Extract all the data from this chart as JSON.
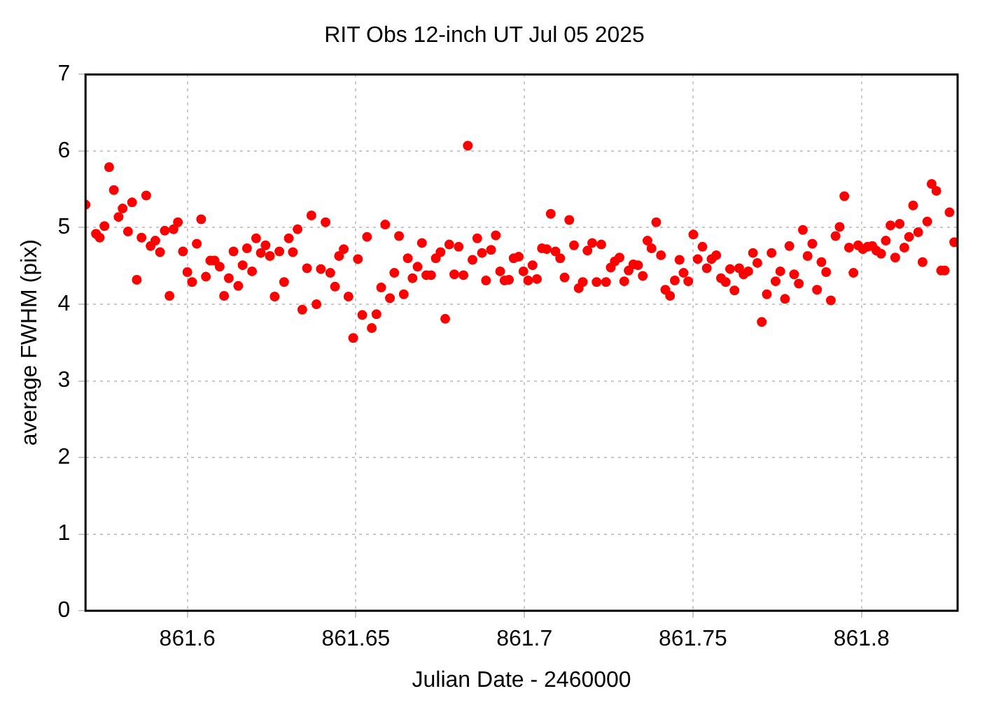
{
  "chart_data": {
    "type": "scatter",
    "title": "RIT Obs 12-inch UT Jul 05 2025",
    "xlabel": "Julian Date - 2460000",
    "ylabel": "average FWHM (pix)",
    "xlim": [
      861.5698,
      861.8285
    ],
    "xticks": [
      861.6,
      861.65,
      861.7,
      861.75,
      861.8
    ],
    "ylim": [
      0,
      7
    ],
    "yticks": [
      0,
      1,
      2,
      3,
      4,
      5,
      6,
      7
    ],
    "grid": true,
    "marker": "circle",
    "legend": false,
    "series": [
      {
        "color": "#ff0000",
        "x": [
          861.5698,
          861.5729,
          861.574,
          861.5754,
          861.5768,
          861.5782,
          861.5796,
          861.5808,
          861.5824,
          861.5836,
          861.585,
          861.5864,
          861.5878,
          861.5891,
          861.5905,
          861.5919,
          861.5933,
          861.5947,
          861.5959,
          861.5972,
          861.5987,
          861.6,
          861.6014,
          861.6028,
          861.6041,
          861.6055,
          861.6068,
          861.6081,
          861.6096,
          861.6109,
          861.6123,
          861.6137,
          861.6151,
          861.6164,
          861.6177,
          861.6192,
          861.6204,
          861.6218,
          861.6232,
          861.6245,
          861.6259,
          861.6273,
          861.6287,
          861.6301,
          861.6313,
          861.6327,
          861.6341,
          861.6355,
          861.6368,
          861.6383,
          861.6396,
          861.641,
          861.6424,
          861.6438,
          861.645,
          861.6464,
          861.6478,
          861.6492,
          861.6506,
          861.6519,
          861.6533,
          861.6547,
          861.6561,
          861.6575,
          861.6587,
          861.6601,
          861.6614,
          861.6628,
          861.6642,
          861.6654,
          861.6668,
          861.6683,
          861.6696,
          861.6709,
          861.6723,
          861.6737,
          861.6751,
          861.6765,
          861.6777,
          861.6792,
          861.6805,
          861.6819,
          861.6832,
          861.6846,
          861.686,
          861.6874,
          861.6886,
          861.6901,
          861.6915,
          861.6928,
          861.6941,
          861.6954,
          861.6968,
          861.6983,
          861.6997,
          861.7011,
          861.7024,
          861.7037,
          861.7052,
          861.7066,
          861.7078,
          861.7092,
          861.7106,
          861.7119,
          861.7133,
          861.7147,
          861.7161,
          861.7173,
          861.7187,
          861.7201,
          861.7214,
          861.7228,
          861.7242,
          861.7256,
          861.7268,
          861.7282,
          861.7296,
          861.7309,
          861.7323,
          861.7337,
          861.7351,
          861.7365,
          861.7377,
          861.7391,
          861.7405,
          861.7418,
          861.7432,
          861.7446,
          861.746,
          861.7472,
          861.7486,
          861.7501,
          861.7514,
          861.7528,
          861.7541,
          861.7555,
          861.7569,
          861.7583,
          861.7597,
          861.761,
          861.7623,
          861.7637,
          861.765,
          861.7664,
          861.7678,
          861.7691,
          861.7704,
          861.7719,
          861.7733,
          861.7745,
          861.7759,
          861.7773,
          861.7786,
          861.78,
          861.7814,
          861.7826,
          861.784,
          861.7854,
          861.7868,
          861.7881,
          861.7895,
          861.7909,
          861.7923,
          861.7935,
          861.7949,
          861.7963,
          861.7976,
          861.799,
          861.8004,
          861.8018,
          861.8032,
          861.8044,
          861.8058,
          861.8072,
          861.8086,
          861.81,
          861.8113,
          861.8127,
          861.8141,
          861.8153,
          861.8168,
          861.8181,
          861.8195,
          861.8208,
          861.8222,
          861.8236,
          861.8247,
          861.8261,
          861.8275
        ],
        "values": [
          5.3,
          4.92,
          4.87,
          5.02,
          5.79,
          5.49,
          5.14,
          5.25,
          4.95,
          5.33,
          4.32,
          4.87,
          5.42,
          4.76,
          4.83,
          4.68,
          4.96,
          4.11,
          4.98,
          5.07,
          4.69,
          4.42,
          4.29,
          4.79,
          5.11,
          4.36,
          4.57,
          4.57,
          4.49,
          4.11,
          4.34,
          4.69,
          4.24,
          4.51,
          4.73,
          4.43,
          4.86,
          4.67,
          4.77,
          4.63,
          4.1,
          4.69,
          4.29,
          4.86,
          4.68,
          4.98,
          3.93,
          4.47,
          5.16,
          4.0,
          4.46,
          5.07,
          4.41,
          4.23,
          4.63,
          4.72,
          4.1,
          3.56,
          4.59,
          3.86,
          4.88,
          3.69,
          3.87,
          4.22,
          5.04,
          4.08,
          4.41,
          4.89,
          4.13,
          4.6,
          4.34,
          4.49,
          4.8,
          4.38,
          4.38,
          4.6,
          4.68,
          3.81,
          4.78,
          4.39,
          4.75,
          4.38,
          6.07,
          4.58,
          4.86,
          4.67,
          4.31,
          4.71,
          4.9,
          4.43,
          4.31,
          4.32,
          4.6,
          4.62,
          4.43,
          4.31,
          4.51,
          4.33,
          4.73,
          4.72,
          5.18,
          4.69,
          4.6,
          4.35,
          5.1,
          4.77,
          4.21,
          4.29,
          4.7,
          4.8,
          4.29,
          4.78,
          4.29,
          4.48,
          4.56,
          4.61,
          4.3,
          4.44,
          4.52,
          4.51,
          4.37,
          4.83,
          4.73,
          5.07,
          4.64,
          4.19,
          4.11,
          4.31,
          4.58,
          4.41,
          4.3,
          4.91,
          4.59,
          4.75,
          4.47,
          4.59,
          4.64,
          4.34,
          4.29,
          4.46,
          4.18,
          4.47,
          4.39,
          4.43,
          4.67,
          4.54,
          3.77,
          4.13,
          4.67,
          4.3,
          4.43,
          4.07,
          4.76,
          4.39,
          4.27,
          4.97,
          4.63,
          4.79,
          4.19,
          4.55,
          4.42,
          4.05,
          4.89,
          5.01,
          5.41,
          4.74,
          4.41,
          4.77,
          4.72,
          4.75,
          4.76,
          4.7,
          4.66,
          4.83,
          5.03,
          4.61,
          5.05,
          4.74,
          4.88,
          5.29,
          4.94,
          4.55,
          5.08,
          5.57,
          5.48,
          4.44,
          4.44,
          5.2,
          4.81
        ]
      }
    ]
  }
}
